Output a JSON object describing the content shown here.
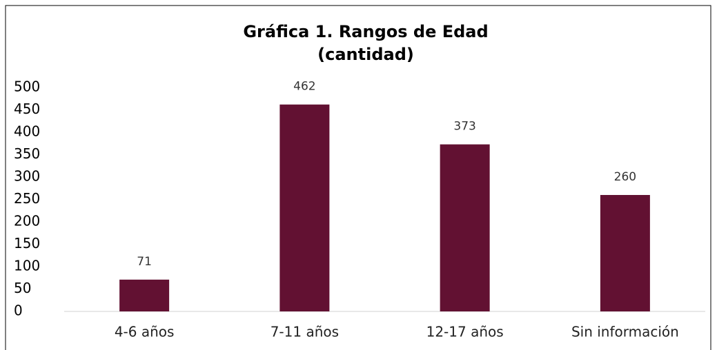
{
  "chart_data": {
    "type": "bar",
    "title": "Gráfica 1. Rangos de Edad",
    "subtitle": "(cantidad)",
    "categories": [
      "4-6 años",
      "7-11 años",
      "12-17 años",
      "Sin información"
    ],
    "values": [
      71,
      462,
      373,
      260
    ],
    "color": "#621132",
    "ylim": [
      0,
      500
    ],
    "yticks": [
      0,
      50,
      100,
      150,
      200,
      250,
      300,
      350,
      400,
      450,
      500
    ],
    "grid": false
  }
}
